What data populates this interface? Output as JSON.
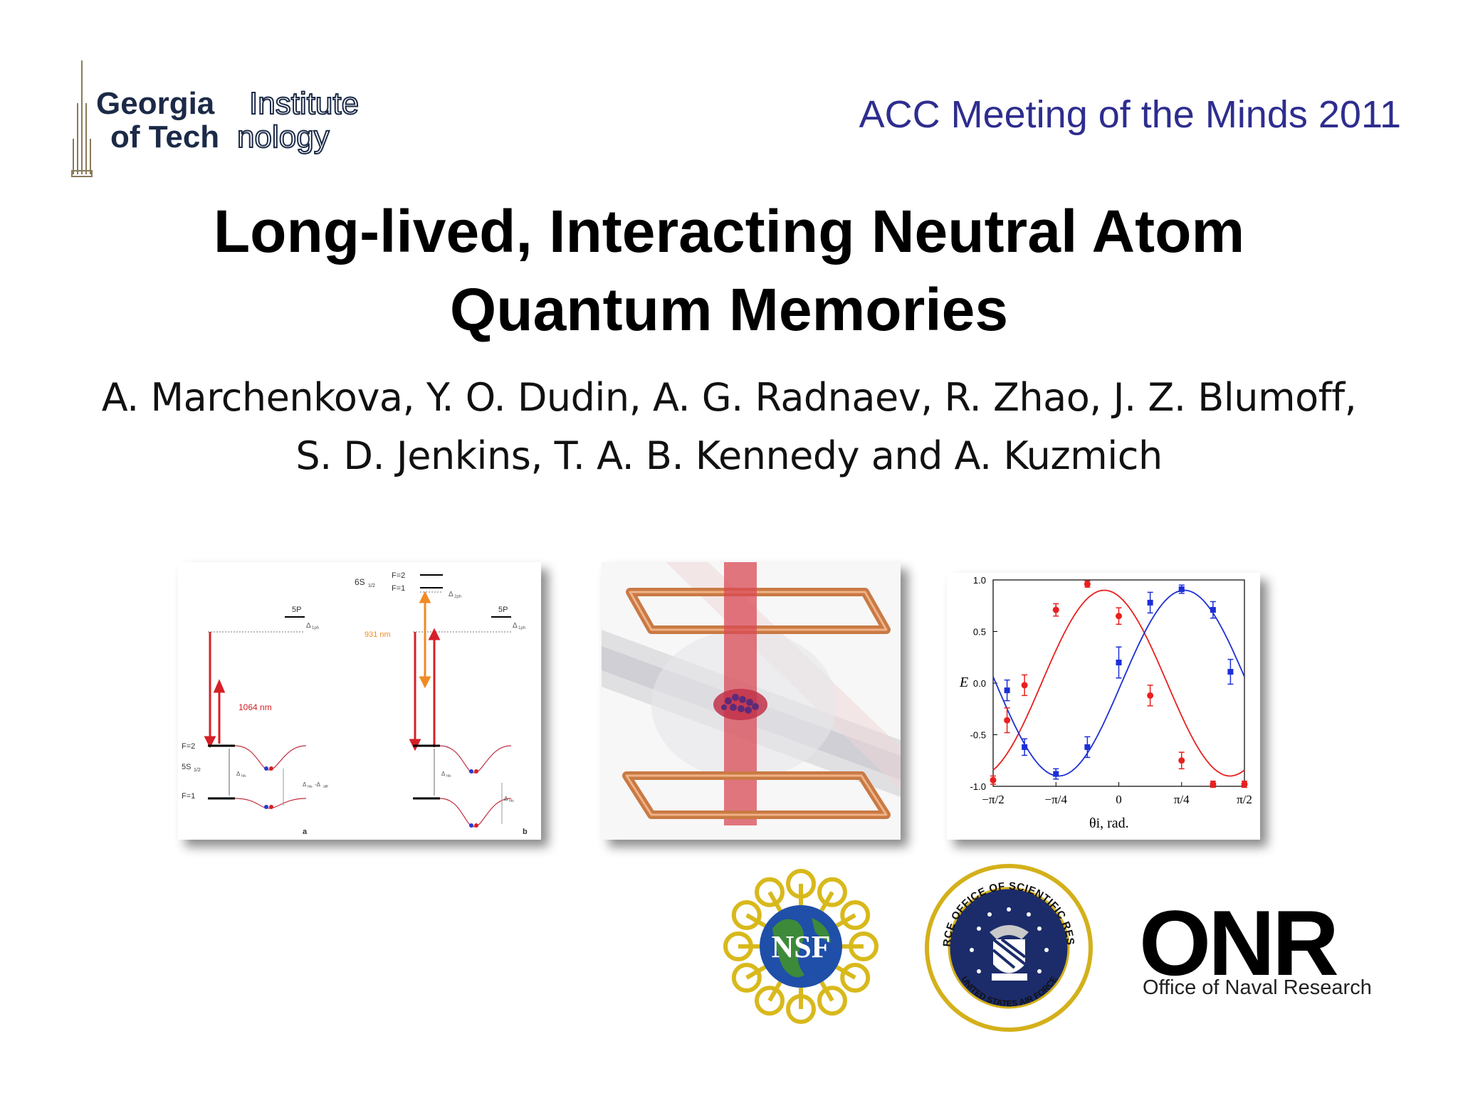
{
  "header": {
    "institution_line1_bold": "Georgia",
    "institution_line1_outline": "Institute",
    "institution_line2_bold": "of Tech",
    "institution_line2_outline": "nology",
    "meeting": "ACC Meeting of the Minds 2011"
  },
  "title": {
    "line1": "Long-lived, Interacting Neutral Atom",
    "line2": "Quantum Memories"
  },
  "authors": {
    "line1": "A. Marchenkova, Y. O. Dudin, A. G. Radnaev, R. Zhao, J. Z. Blumoff,",
    "line2": "S. D. Jenkins, T. A. B. Kennedy and A. Kuzmich"
  },
  "energy_diagram": {
    "level_6s": "6S",
    "level_6s_sub": "1/2",
    "f2": "F=2",
    "f1": "F=1",
    "delta_2ph": "Δ",
    "delta_2ph_sub": "2ph",
    "label_5p_a": "5P",
    "label_5p_b": "5P",
    "delta_1ph": "Δ",
    "delta_1ph_sub": "1ph",
    "wl_931": "931 nm",
    "wl_1064": "1064 nm",
    "ground_f2": "F=2",
    "ground_5s": "5S",
    "ground_5s_sub": "1/2",
    "ground_f1": "F=1",
    "delta_hfs": "Δ",
    "delta_hfs_sub": "hfs",
    "delta_diff": "Δ",
    "delta_diff_sub": "hfs",
    "delta_diff_minus": "-Δ",
    "delta_diff_minus_sub": "diff",
    "panel_a": "a",
    "panel_b": "b"
  },
  "chart_data": {
    "type": "scatter",
    "xlabel": "θi, rad.",
    "ylabel": "E",
    "xlim": [
      -1.5708,
      1.5708
    ],
    "ylim": [
      -1.0,
      1.0
    ],
    "x_ticks": [
      "−π/2",
      "−π/4",
      "0",
      "π/4",
      "π/2"
    ],
    "y_ticks": [
      "1.0",
      "0.5",
      "0.0",
      "-0.5",
      "-1.0"
    ],
    "series": [
      {
        "color": "#e8201e",
        "marker": "circle",
        "x": [
          -1.5708,
          -1.3963,
          -1.1781,
          -0.7854,
          -0.3927,
          0.0,
          0.3927,
          0.7854,
          1.1781,
          1.5708
        ],
        "y": [
          -0.94,
          -0.36,
          -0.02,
          0.71,
          0.96,
          0.65,
          -0.12,
          -0.75,
          -0.98,
          -0.98
        ],
        "err": [
          0.04,
          0.12,
          0.1,
          0.06,
          0.03,
          0.08,
          0.1,
          0.08,
          0.03,
          0.03
        ]
      },
      {
        "color": "#1d2fd6",
        "marker": "square",
        "x": [
          -1.3963,
          -1.1781,
          -0.7854,
          -0.3927,
          0.0,
          0.3927,
          0.7854,
          1.1781,
          1.3963
        ],
        "y": [
          -0.07,
          -0.62,
          -0.88,
          -0.62,
          0.2,
          0.78,
          0.91,
          0.71,
          0.11
        ],
        "err": [
          0.1,
          0.08,
          0.05,
          0.1,
          0.15,
          0.1,
          0.04,
          0.08,
          0.12
        ]
      }
    ],
    "fits": [
      {
        "color": "#e8201e",
        "amplitude": 0.9,
        "phase": -0.18
      },
      {
        "color": "#1d2fd6",
        "amplitude": 0.9,
        "phase": 0.82
      }
    ]
  },
  "logos": {
    "nsf": "NSF",
    "afosr_top": "AIR FORCE OFFICE OF SCIENTIFIC RESEARCH",
    "afosr_bottom": "UNITED STATES AIR FORCE",
    "onr": "ONR",
    "onr_sub": "Office of Naval Research"
  },
  "colors": {
    "meeting": "#2e2d8f",
    "gt_navy": "#1b2a47",
    "laser_red": "#d62027",
    "laser_orange": "#f08a24",
    "coil": "#d98c55"
  }
}
